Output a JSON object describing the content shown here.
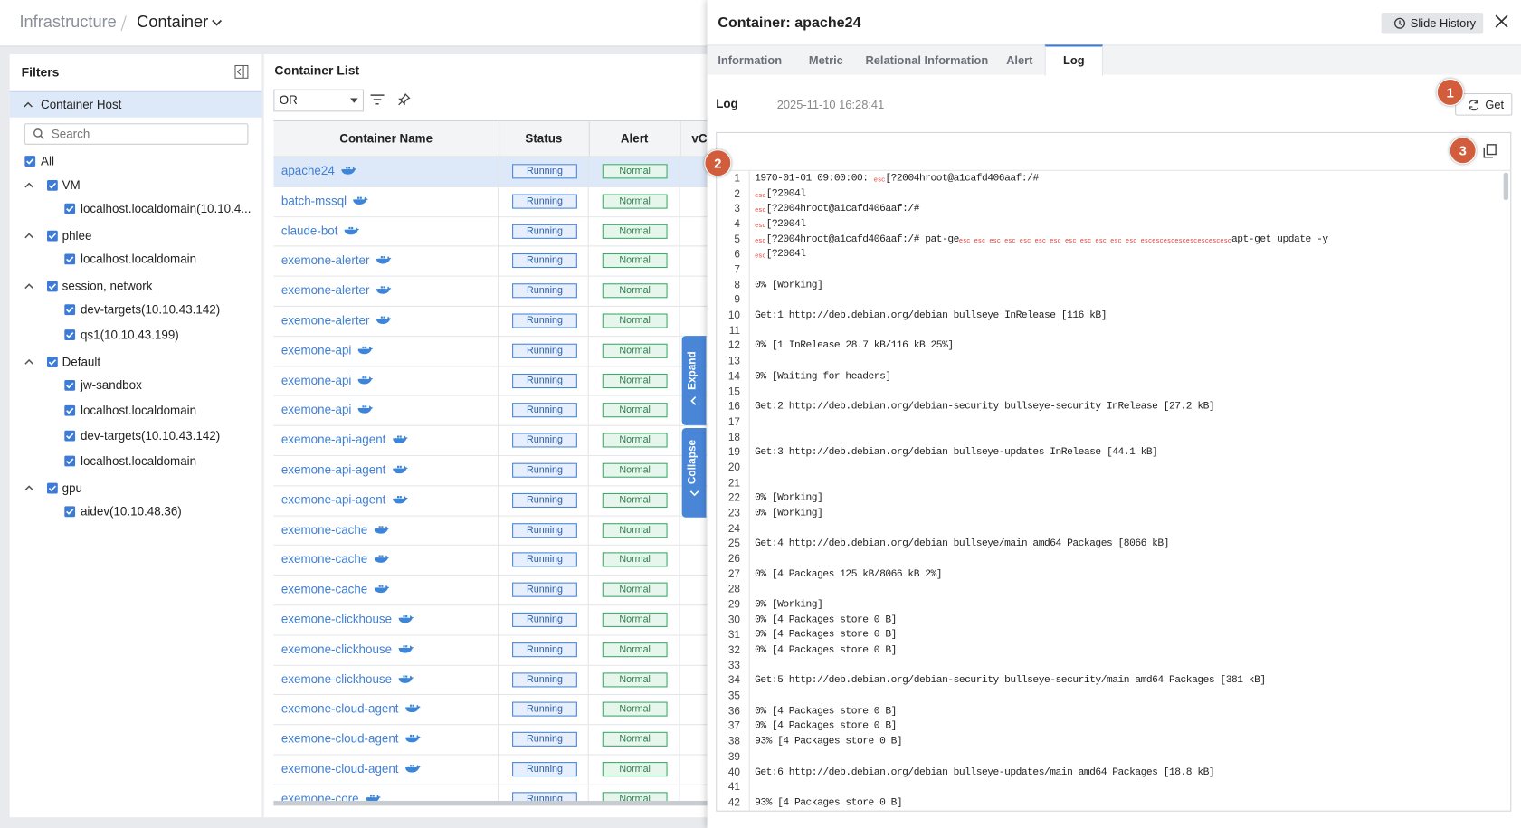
{
  "header": {
    "breadcrumb": [
      "Infrastructure",
      "Container"
    ]
  },
  "filters": {
    "title": "Filters",
    "section": "Container Host",
    "search_placeholder": "Search",
    "all": "All",
    "groups": [
      {
        "name": "VM",
        "items": [
          "localhost.localdomain(10.10.4..."
        ]
      },
      {
        "name": "phlee",
        "items": [
          "localhost.localdomain"
        ]
      },
      {
        "name": "session, network",
        "items": [
          "dev-targets(10.10.43.142)",
          "qs1(10.10.43.199)"
        ]
      },
      {
        "name": "Default",
        "items": [
          "jw-sandbox",
          "localhost.localdomain",
          "dev-targets(10.10.43.142)",
          "localhost.localdomain"
        ]
      },
      {
        "name": "gpu",
        "items": [
          "aidev(10.10.48.36)"
        ]
      }
    ]
  },
  "container_list": {
    "title": "Container List",
    "operator": "OR",
    "columns": [
      "Container Name",
      "Status",
      "Alert",
      "vC"
    ],
    "rows": [
      [
        "apache24",
        "Running",
        "Normal"
      ],
      [
        "batch-mssql",
        "Running",
        "Normal"
      ],
      [
        "claude-bot",
        "Running",
        "Normal"
      ],
      [
        "exemone-alerter",
        "Running",
        "Normal"
      ],
      [
        "exemone-alerter",
        "Running",
        "Normal"
      ],
      [
        "exemone-alerter",
        "Running",
        "Normal"
      ],
      [
        "exemone-api",
        "Running",
        "Normal"
      ],
      [
        "exemone-api",
        "Running",
        "Normal"
      ],
      [
        "exemone-api",
        "Running",
        "Normal"
      ],
      [
        "exemone-api-agent",
        "Running",
        "Normal"
      ],
      [
        "exemone-api-agent",
        "Running",
        "Normal"
      ],
      [
        "exemone-api-agent",
        "Running",
        "Normal"
      ],
      [
        "exemone-cache",
        "Running",
        "Normal"
      ],
      [
        "exemone-cache",
        "Running",
        "Normal"
      ],
      [
        "exemone-cache",
        "Running",
        "Normal"
      ],
      [
        "exemone-clickhouse",
        "Running",
        "Normal"
      ],
      [
        "exemone-clickhouse",
        "Running",
        "Normal"
      ],
      [
        "exemone-clickhouse",
        "Running",
        "Normal"
      ],
      [
        "exemone-cloud-agent",
        "Running",
        "Normal"
      ],
      [
        "exemone-cloud-agent",
        "Running",
        "Normal"
      ],
      [
        "exemone-cloud-agent",
        "Running",
        "Normal"
      ],
      [
        "exemone-core",
        "Running",
        "Normal"
      ]
    ]
  },
  "side_tabs": [
    "Expand",
    "Collapse"
  ],
  "detail": {
    "title": "Container: apache24",
    "slide_history": "Slide History",
    "tabs": [
      "Information",
      "Metric",
      "Relational Information",
      "Alert",
      "Log"
    ],
    "active_tab": 4,
    "markers": [
      "1",
      "2",
      "3"
    ],
    "log": {
      "label": "Log",
      "timestamp": "2025-11-10 16:28:41",
      "get": "Get",
      "lines": [
        {
          "n": 1,
          "parts": [
            "1970-01-01 09:00:00: ",
            {
              "ctrl": "esc"
            },
            "[?2004hroot@a1cafd406aaf:/#"
          ]
        },
        {
          "n": 2,
          "parts": [
            {
              "ctrl": "esc"
            },
            "[?2004l"
          ]
        },
        {
          "n": 3,
          "parts": [
            {
              "ctrl": "esc"
            },
            "[?2004hroot@a1cafd406aaf:/#"
          ]
        },
        {
          "n": 4,
          "parts": [
            {
              "ctrl": "esc"
            },
            "[?2004l"
          ]
        },
        {
          "n": 5,
          "parts": [
            {
              "ctrl": "esc"
            },
            "[?2004hroot@a1cafd406aaf:/# pat-ge",
            {
              "ctrl": "esc esc esc esc esc esc esc esc esc esc esc esc "
            },
            {
              "ctrl": "escescescescescescescesc"
            },
            "apt-get update -y"
          ]
        },
        {
          "n": 6,
          "parts": [
            {
              "ctrl": "esc"
            },
            "[?2004l"
          ]
        },
        {
          "n": 7,
          "parts": []
        },
        {
          "n": 8,
          "parts": [
            "0% [Working]"
          ]
        },
        {
          "n": 9,
          "parts": []
        },
        {
          "n": 10,
          "parts": [
            "Get:1 http://deb.debian.org/debian bullseye InRelease [116 kB]"
          ]
        },
        {
          "n": 11,
          "parts": []
        },
        {
          "n": 12,
          "parts": [
            "0% [1 InRelease 28.7 kB/116 kB 25%]"
          ]
        },
        {
          "n": 13,
          "parts": []
        },
        {
          "n": 14,
          "parts": [
            "0% [Waiting for headers]"
          ]
        },
        {
          "n": 15,
          "parts": []
        },
        {
          "n": 16,
          "parts": [
            "Get:2 http://deb.debian.org/debian-security bullseye-security InRelease [27.2 kB]"
          ]
        },
        {
          "n": 17,
          "parts": []
        },
        {
          "n": 18,
          "parts": []
        },
        {
          "n": 19,
          "parts": [
            "Get:3 http://deb.debian.org/debian bullseye-updates InRelease [44.1 kB]"
          ]
        },
        {
          "n": 20,
          "parts": []
        },
        {
          "n": 21,
          "parts": []
        },
        {
          "n": 22,
          "parts": [
            "0% [Working]"
          ]
        },
        {
          "n": 23,
          "parts": [
            "0% [Working]"
          ]
        },
        {
          "n": 24,
          "parts": []
        },
        {
          "n": 25,
          "parts": [
            "Get:4 http://deb.debian.org/debian bullseye/main amd64 Packages [8066 kB]"
          ]
        },
        {
          "n": 26,
          "parts": []
        },
        {
          "n": 27,
          "parts": [
            "0% [4 Packages 125 kB/8066 kB 2%]"
          ]
        },
        {
          "n": 28,
          "parts": []
        },
        {
          "n": 29,
          "parts": [
            "0% [Working]"
          ]
        },
        {
          "n": 30,
          "parts": [
            "0% [4 Packages store 0 B]"
          ]
        },
        {
          "n": 31,
          "parts": [
            "0% [4 Packages store 0 B]"
          ]
        },
        {
          "n": 32,
          "parts": [
            "0% [4 Packages store 0 B]"
          ]
        },
        {
          "n": 33,
          "parts": []
        },
        {
          "n": 34,
          "parts": [
            "Get:5 http://deb.debian.org/debian-security bullseye-security/main amd64 Packages [381 kB]"
          ]
        },
        {
          "n": 35,
          "parts": []
        },
        {
          "n": 36,
          "parts": [
            "0% [4 Packages store 0 B]"
          ]
        },
        {
          "n": 37,
          "parts": [
            "0% [4 Packages store 0 B]"
          ]
        },
        {
          "n": 38,
          "parts": [
            "93% [4 Packages store 0 B]"
          ]
        },
        {
          "n": 39,
          "parts": []
        },
        {
          "n": 40,
          "parts": [
            "Get:6 http://deb.debian.org/debian bullseye-updates/main amd64 Packages [18.8 kB]"
          ]
        },
        {
          "n": 41,
          "parts": []
        },
        {
          "n": 42,
          "parts": [
            "93% [4 Packages store 0 B]"
          ]
        }
      ]
    }
  }
}
